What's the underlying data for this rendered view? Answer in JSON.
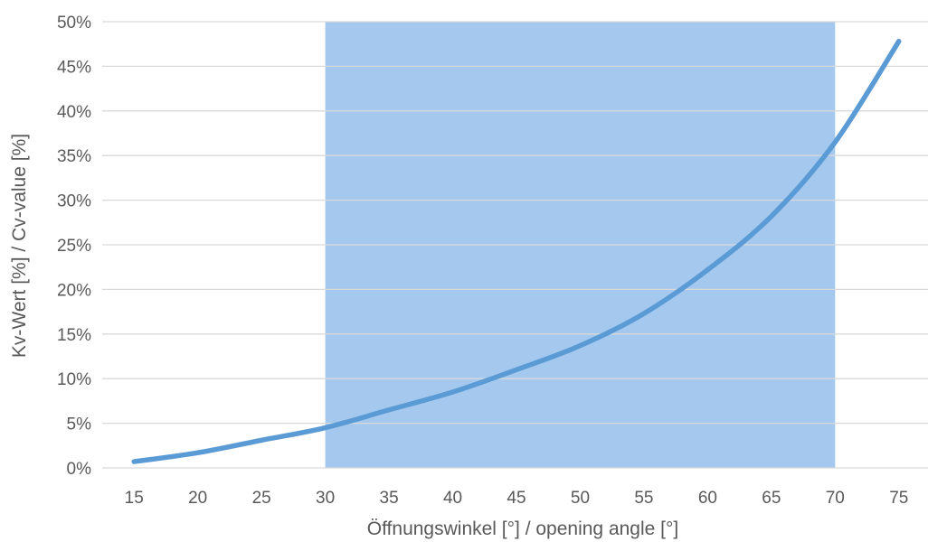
{
  "chart_data": {
    "type": "line",
    "title": "",
    "xlabel": "Öffnungswinkel [°] / opening angle [°]",
    "ylabel": "Kv-Wert [%] / Cv-value [%]",
    "x_ticks": [
      "15",
      "20",
      "25",
      "30",
      "35",
      "40",
      "45",
      "50",
      "55",
      "60",
      "65",
      "70",
      "75"
    ],
    "y_ticks": [
      "0%",
      "5%",
      "10%",
      "15%",
      "20%",
      "25%",
      "30%",
      "35%",
      "40%",
      "45%",
      "50%"
    ],
    "xlim": [
      15,
      75
    ],
    "ylim": [
      0,
      50
    ],
    "grid": "horizontal",
    "highlight_range": [
      30,
      70
    ],
    "colors": {
      "line": "#5b9bd5",
      "highlight": "#a5c9ee",
      "grid": "#d9d9d9",
      "text": "#595959"
    },
    "series": [
      {
        "x": [
          15,
          20,
          25,
          30,
          35,
          40,
          45,
          50,
          55,
          60,
          65,
          70,
          75
        ],
        "values": [
          0.7,
          1.7,
          3.1,
          4.5,
          6.5,
          8.5,
          11.0,
          13.7,
          17.3,
          22.2,
          28.2,
          36.5,
          47.8
        ]
      }
    ]
  }
}
